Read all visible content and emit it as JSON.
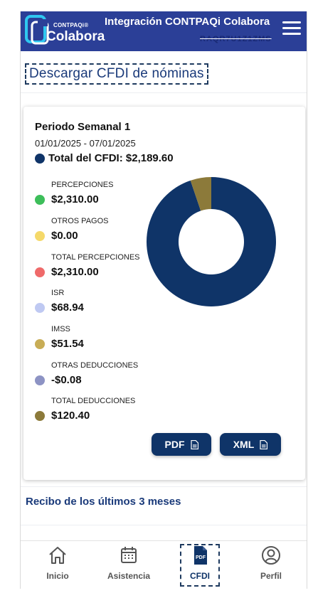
{
  "header": {
    "logo_small": "CONTPAQi®",
    "logo_big": "Colabora",
    "title": "Integración CONTPAQi Colabora",
    "subtitle": "RAQR7U1Z1ZMS"
  },
  "page": {
    "title": "Descargar CFDI de nóminas"
  },
  "card": {
    "period_title": "Periodo Semanal 1",
    "period_dates": "01/01/2025 - 07/01/2025",
    "total_label": "Total del CFDI: $2,189.60",
    "total_color": "#0f3468",
    "legend": [
      {
        "label": "PERCEPCIONES",
        "value": "$2,310.00",
        "color": "#3dbe5a"
      },
      {
        "label": "OTROS PAGOS",
        "value": "$0.00",
        "color": "#f5d96a"
      },
      {
        "label": "TOTAL PERCEPCIONES",
        "value": "$2,310.00",
        "color": "#ef6a6a"
      },
      {
        "label": "ISR",
        "value": "$68.94",
        "color": "#bfc9f2"
      },
      {
        "label": "IMSS",
        "value": "$51.54",
        "color": "#c8ad56"
      },
      {
        "label": "OTRAS DEDUCCIONES",
        "value": "-$0.08",
        "color": "#8d93c4"
      },
      {
        "label": "TOTAL DEDUCCIONES",
        "value": "$120.40",
        "color": "#8c7a3a"
      }
    ],
    "pdf_button": "PDF",
    "xml_button": "XML"
  },
  "chart_data": {
    "type": "pie",
    "series": [
      {
        "name": "Total del CFDI",
        "value": 2189.6,
        "color": "#0f3468"
      },
      {
        "name": "TOTAL DEDUCCIONES",
        "value": 120.4,
        "color": "#8c7a3a"
      }
    ]
  },
  "recibo": {
    "label": "Recibo de los últimos 3 meses"
  },
  "nav": {
    "items": [
      {
        "label": "Inicio",
        "icon": "home-icon"
      },
      {
        "label": "Asistencia",
        "icon": "calendar-icon"
      },
      {
        "label": "CFDI",
        "icon": "pdf-file-icon",
        "active": true
      },
      {
        "label": "Perfil",
        "icon": "user-icon"
      }
    ]
  }
}
